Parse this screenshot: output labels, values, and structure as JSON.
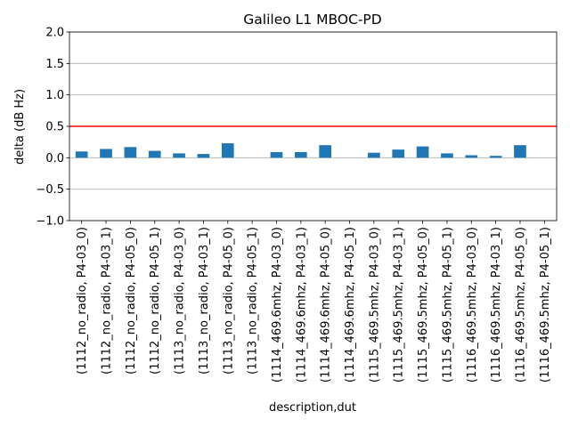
{
  "chart_data": {
    "type": "bar",
    "title": "Galileo L1 MBOC-PD",
    "xlabel": "description,dut",
    "ylabel": "delta (dB Hz)",
    "ylim": [
      -1.0,
      2.0
    ],
    "yticks": [
      "−1.0",
      "−0.5",
      "0.0",
      "0.5",
      "1.0",
      "1.5",
      "2.0"
    ],
    "ytick_values": [
      -1.0,
      -0.5,
      0.0,
      0.5,
      1.0,
      1.5,
      2.0
    ],
    "grid": "y",
    "threshold": 0.5,
    "bar_color": "#1f77b4",
    "threshold_color": "#ff0000",
    "categories": [
      "(1112_no_radio, P4-03_0)",
      "(1112_no_radio, P4-03_1)",
      "(1112_no_radio, P4-05_0)",
      "(1112_no_radio, P4-05_1)",
      "(1113_no_radio, P4-03_0)",
      "(1113_no_radio, P4-03_1)",
      "(1113_no_radio, P4-05_0)",
      "(1113_no_radio, P4-05_1)",
      "(1114_469.6mhz, P4-03_0)",
      "(1114_469.6mhz, P4-03_1)",
      "(1114_469.6mhz, P4-05_0)",
      "(1114_469.6mhz, P4-05_1)",
      "(1115_469.5mhz, P4-03_0)",
      "(1115_469.5mhz, P4-03_1)",
      "(1115_469.5mhz, P4-05_0)",
      "(1115_469.5mhz, P4-05_1)",
      "(1116_469.5mhz, P4-03_0)",
      "(1116_469.5mhz, P4-03_1)",
      "(1116_469.5mhz, P4-05_0)",
      "(1116_469.5mhz, P4-05_1)"
    ],
    "values": [
      0.1,
      0.14,
      0.17,
      0.11,
      0.07,
      0.06,
      0.23,
      0.0,
      0.09,
      0.09,
      0.2,
      0.0,
      0.08,
      0.13,
      0.18,
      0.07,
      0.04,
      0.03,
      0.2,
      0.0
    ]
  }
}
